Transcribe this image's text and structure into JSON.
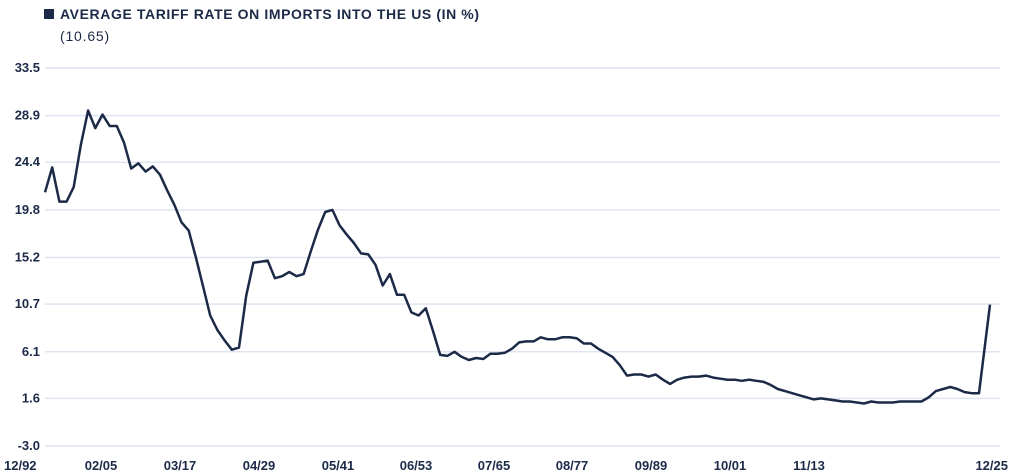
{
  "chart_data": {
    "type": "line",
    "title": "AVERAGE TARIFF RATE ON IMPORTS INTO THE US (IN %)",
    "subtitle": "(10.65)",
    "xlabel": "",
    "ylabel": "",
    "xlim": [
      1892,
      2025
    ],
    "ylim": [
      -3.0,
      33.5
    ],
    "grid": true,
    "legend": "top-left",
    "y_ticks": [
      "33.5",
      "28.9",
      "24.4",
      "19.8",
      "15.2",
      "10.7",
      "6.1",
      "1.6",
      "-3.0"
    ],
    "y_tick_values": [
      33.5,
      28.9,
      24.4,
      19.8,
      15.2,
      10.7,
      6.1,
      1.6,
      -3.0
    ],
    "x_ticks": [
      "12/92",
      "02/05",
      "03/17",
      "04/29",
      "05/41",
      "06/53",
      "07/65",
      "08/77",
      "09/89",
      "10/01",
      "11/13",
      "12/25"
    ],
    "series": [
      {
        "name": "AVERAGE TARIFF RATE ON IMPORTS INTO THE US (IN %)",
        "color": "#1c2a48",
        "last_value": 10.65,
        "values": [
          21.5,
          23.9,
          20.6,
          20.6,
          22.0,
          26.1,
          29.4,
          27.7,
          29.0,
          27.9,
          27.9,
          26.3,
          23.8,
          24.3,
          23.5,
          24.0,
          23.2,
          21.7,
          20.3,
          18.6,
          17.8,
          15.2,
          12.4,
          9.6,
          8.2,
          7.2,
          6.3,
          6.5,
          11.5,
          14.7,
          14.8,
          14.9,
          13.2,
          13.4,
          13.8,
          13.4,
          13.6,
          15.8,
          17.9,
          19.6,
          19.8,
          18.3,
          17.4,
          16.6,
          15.6,
          15.5,
          14.5,
          12.5,
          13.6,
          11.6,
          11.6,
          9.9,
          9.6,
          10.3,
          8.1,
          5.8,
          5.7,
          6.1,
          5.6,
          5.3,
          5.5,
          5.4,
          5.9,
          5.9,
          6.0,
          6.4,
          7.0,
          7.1,
          7.1,
          7.5,
          7.3,
          7.3,
          7.5,
          7.5,
          7.4,
          6.9,
          6.9,
          6.4,
          6.0,
          5.6,
          4.8,
          3.8,
          3.9,
          3.9,
          3.7,
          3.9,
          3.4,
          3.0,
          3.4,
          3.6,
          3.7,
          3.7,
          3.8,
          3.6,
          3.5,
          3.4,
          3.4,
          3.3,
          3.4,
          3.3,
          3.2,
          2.9,
          2.5,
          2.3,
          2.1,
          1.9,
          1.7,
          1.5,
          1.6,
          1.5,
          1.4,
          1.3,
          1.3,
          1.2,
          1.1,
          1.3,
          1.2,
          1.2,
          1.2,
          1.3,
          1.3,
          1.3,
          1.3,
          1.7,
          2.3,
          2.5,
          2.7,
          2.5,
          2.2,
          2.1,
          2.1,
          10.65
        ]
      }
    ]
  }
}
